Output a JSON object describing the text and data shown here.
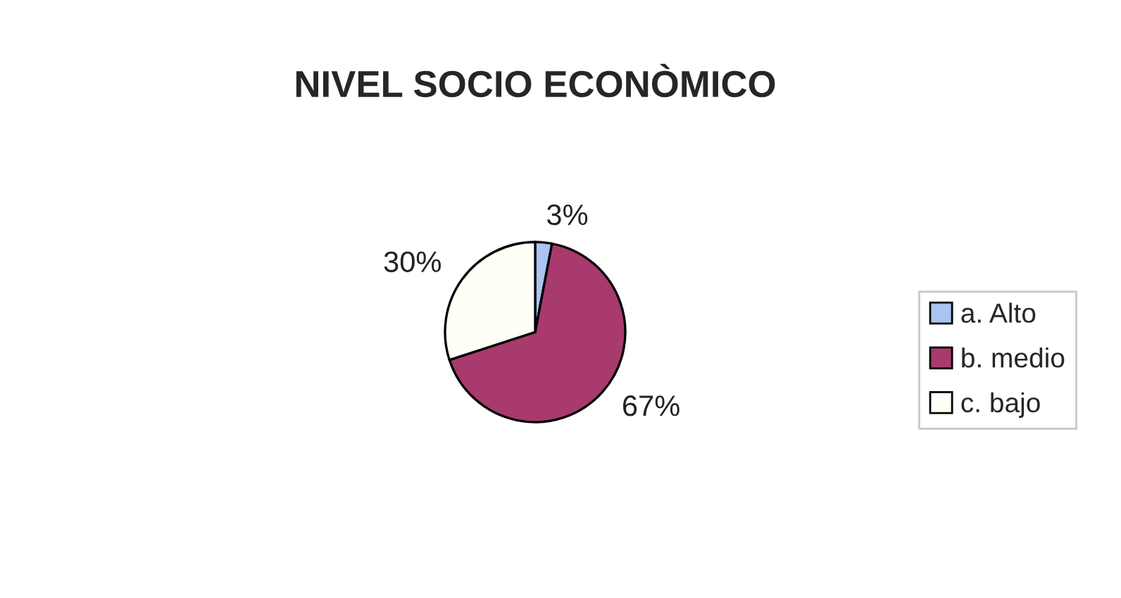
{
  "chart_data": {
    "type": "pie",
    "title": "NIVEL SOCIO ECONÒMICO",
    "categories": [
      "a. Alto",
      "b. medio",
      "c. bajo"
    ],
    "values": [
      3,
      67,
      30
    ],
    "colors": [
      "#a9c4f0",
      "#a83a6e",
      "#fffff6"
    ],
    "value_labels": [
      "3%",
      "67%",
      "30%"
    ],
    "legend": "right"
  }
}
